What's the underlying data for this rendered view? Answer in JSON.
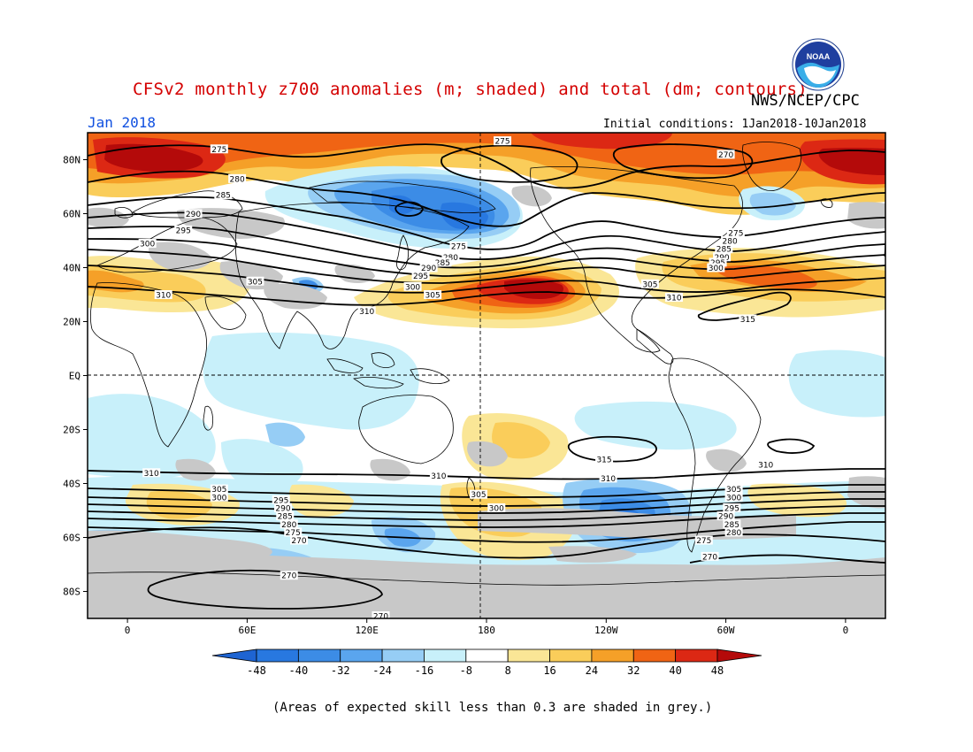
{
  "title": "CFSv2 monthly z700 anomalies (m; shaded) and total (dm; contours)",
  "agency": "NWS/NCEP/CPC",
  "logo_text": "NOAA",
  "month": "Jan 2018",
  "initial_conditions": "Initial conditions: 1Jan2018-10Jan2018",
  "footnote": "(Areas of expected skill less than 0.3 are shaded in grey.)",
  "map": {
    "projection": "equirectangular",
    "lon_range": [
      -20,
      380
    ],
    "lat_range": [
      -90,
      90
    ],
    "lat_ticks": [
      {
        "lat": 80,
        "label": "80N"
      },
      {
        "lat": 60,
        "label": "60N"
      },
      {
        "lat": 40,
        "label": "40N"
      },
      {
        "lat": 20,
        "label": "20N"
      },
      {
        "lat": 0,
        "label": "EQ"
      },
      {
        "lat": -20,
        "label": "20S"
      },
      {
        "lat": -40,
        "label": "40S"
      },
      {
        "lat": -60,
        "label": "60S"
      },
      {
        "lat": -80,
        "label": "80S"
      }
    ],
    "lon_ticks": [
      {
        "lon": 0,
        "label": "0"
      },
      {
        "lon": 60,
        "label": "60E"
      },
      {
        "lon": 120,
        "label": "120E"
      },
      {
        "lon": 180,
        "label": "180"
      },
      {
        "lon": 240,
        "label": "120W"
      },
      {
        "lon": 300,
        "label": "60W"
      },
      {
        "lon": 360,
        "label": "0"
      }
    ],
    "reference_lines": [
      "equator",
      "dateline"
    ]
  },
  "colorbar": {
    "labels": [
      "-48",
      "-40",
      "-32",
      "-24",
      "-16",
      "-8",
      "8",
      "16",
      "24",
      "32",
      "40",
      "48"
    ],
    "colors": [
      "#1e64d2",
      "#2878e0",
      "#3c8ce6",
      "#5aa5ee",
      "#96cdf5",
      "#c8f0fa",
      "#ffffff",
      "#fae696",
      "#facd5a",
      "#f5a028",
      "#f06414",
      "#dc2814",
      "#b40a0a"
    ]
  },
  "contours": [
    {
      "value": "275",
      "lon": 46,
      "lat": 84
    },
    {
      "value": "280",
      "lon": 55,
      "lat": 73
    },
    {
      "value": "285",
      "lon": 48,
      "lat": 67
    },
    {
      "value": "290",
      "lon": 33,
      "lat": 60
    },
    {
      "value": "295",
      "lon": 28,
      "lat": 54
    },
    {
      "value": "300",
      "lon": 10,
      "lat": 49
    },
    {
      "value": "305",
      "lon": 64,
      "lat": 35
    },
    {
      "value": "310",
      "lon": 18,
      "lat": 30
    },
    {
      "value": "305",
      "lon": 153,
      "lat": 30
    },
    {
      "value": "310",
      "lon": 120,
      "lat": 24
    },
    {
      "value": "275",
      "lon": 166,
      "lat": 48
    },
    {
      "value": "280",
      "lon": 162,
      "lat": 44
    },
    {
      "value": "285",
      "lon": 158,
      "lat": 42
    },
    {
      "value": "290",
      "lon": 151,
      "lat": 40
    },
    {
      "value": "295",
      "lon": 147,
      "lat": 37
    },
    {
      "value": "300",
      "lon": 143,
      "lat": 33
    },
    {
      "value": "275",
      "lon": 188,
      "lat": 87
    },
    {
      "value": "270",
      "lon": 300,
      "lat": 82
    },
    {
      "value": "275",
      "lon": 305,
      "lat": 53
    },
    {
      "value": "280",
      "lon": 302,
      "lat": 50
    },
    {
      "value": "285",
      "lon": 299,
      "lat": 47
    },
    {
      "value": "290",
      "lon": 298,
      "lat": 44
    },
    {
      "value": "295",
      "lon": 296,
      "lat": 42
    },
    {
      "value": "300",
      "lon": 295,
      "lat": 40
    },
    {
      "value": "305",
      "lon": 262,
      "lat": 34
    },
    {
      "value": "310",
      "lon": 274,
      "lat": 29
    },
    {
      "value": "315",
      "lon": 311,
      "lat": 21
    },
    {
      "value": "315",
      "lon": 239,
      "lat": -31
    },
    {
      "value": "310",
      "lon": 12,
      "lat": -36
    },
    {
      "value": "310",
      "lon": 156,
      "lat": -37
    },
    {
      "value": "310",
      "lon": 241,
      "lat": -38
    },
    {
      "value": "310",
      "lon": 320,
      "lat": -33
    },
    {
      "value": "305",
      "lon": 46,
      "lat": -42
    },
    {
      "value": "300",
      "lon": 46,
      "lat": -45
    },
    {
      "value": "295",
      "lon": 77,
      "lat": -46
    },
    {
      "value": "290",
      "lon": 78,
      "lat": -49
    },
    {
      "value": "285",
      "lon": 79,
      "lat": -52
    },
    {
      "value": "280",
      "lon": 81,
      "lat": -55
    },
    {
      "value": "275",
      "lon": 83,
      "lat": -58
    },
    {
      "value": "270",
      "lon": 86,
      "lat": -61
    },
    {
      "value": "305",
      "lon": 176,
      "lat": -44
    },
    {
      "value": "300",
      "lon": 185,
      "lat": -49
    },
    {
      "value": "305",
      "lon": 304,
      "lat": -42
    },
    {
      "value": "300",
      "lon": 304,
      "lat": -45
    },
    {
      "value": "295",
      "lon": 303,
      "lat": -49
    },
    {
      "value": "290",
      "lon": 300,
      "lat": -52
    },
    {
      "value": "285",
      "lon": 303,
      "lat": -55
    },
    {
      "value": "280",
      "lon": 304,
      "lat": -58
    },
    {
      "value": "275",
      "lon": 289,
      "lat": -61
    },
    {
      "value": "270",
      "lon": 292,
      "lat": -67
    },
    {
      "value": "270",
      "lon": 81,
      "lat": -74
    },
    {
      "value": "270",
      "lon": 127,
      "lat": -89
    }
  ]
}
